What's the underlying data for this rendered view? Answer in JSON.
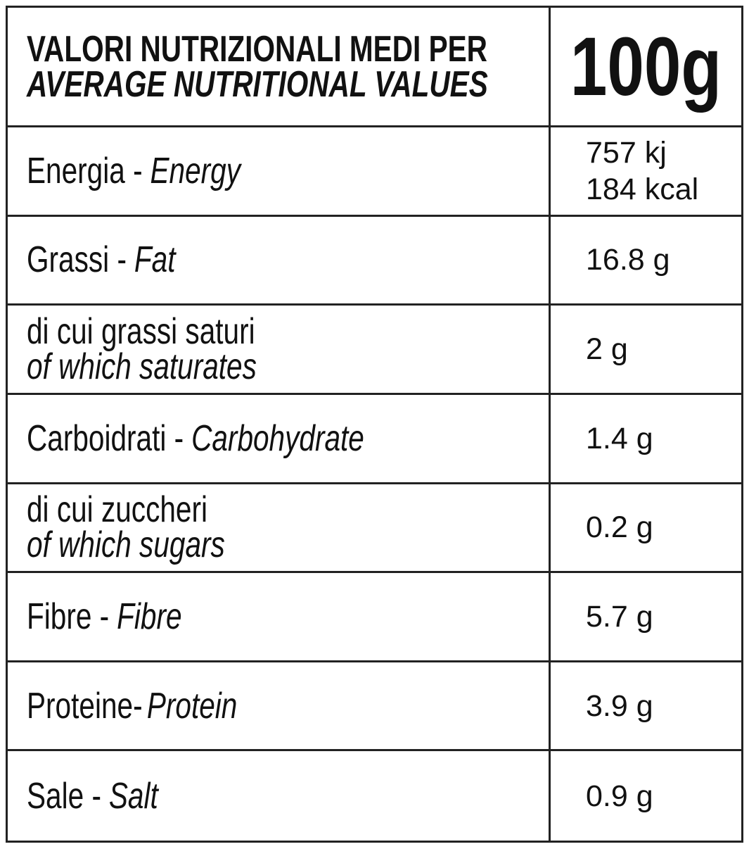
{
  "header": {
    "title": "VALORI NUTRIZIONALI MEDI PER",
    "subtitle": "AVERAGE NUTRITIONAL VALUES",
    "amount": "100g"
  },
  "table": {
    "rows": [
      {
        "it": "Energia -",
        "en": "Energy",
        "value": [
          "757 kj",
          "184 kcal"
        ]
      },
      {
        "it": "Grassi -",
        "en": "Fat",
        "value": [
          "16.8 g"
        ]
      },
      {
        "it": "di cui grassi saturi",
        "en": "of which saturates",
        "value": [
          "2 g"
        ]
      },
      {
        "it": "Carboidrati -",
        "en": "Carbohydrate",
        "value": [
          "1.4 g"
        ]
      },
      {
        "it": "di cui zuccheri",
        "en": "of which sugars",
        "value": [
          "0.2 g"
        ]
      },
      {
        "it": "Fibre -",
        "en": "Fibre",
        "value": [
          "5.7 g"
        ]
      },
      {
        "it": "Proteine-",
        "en": "Protein",
        "value": [
          "3.9 g"
        ]
      },
      {
        "it": "Sale -",
        "en": "Salt",
        "value": [
          "0.9 g"
        ]
      }
    ]
  }
}
